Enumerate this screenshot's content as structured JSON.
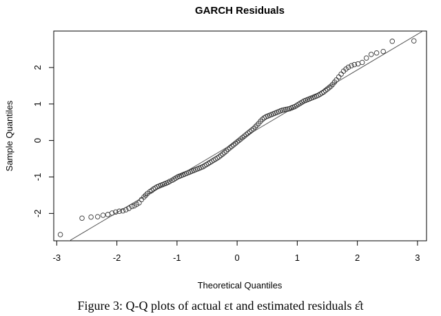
{
  "chart_data": {
    "type": "scatter",
    "title": "GARCH Residuals",
    "xlabel": "Theoretical Quantiles",
    "ylabel": "Sample Quantiles",
    "xlim": [
      -3.05,
      3.15
    ],
    "ylim": [
      -2.75,
      3.0
    ],
    "xticks": [
      -3,
      -2,
      -1,
      0,
      1,
      2,
      3
    ],
    "yticks": [
      -2,
      -1,
      0,
      1,
      2
    ],
    "grid": false,
    "reference_line": {
      "slope": 0.9783,
      "intercept": -0.0217
    },
    "points": [
      [
        -2.94,
        -2.58
      ],
      [
        -2.58,
        -2.13
      ],
      [
        -2.43,
        -2.1
      ],
      [
        -2.32,
        -2.09
      ],
      [
        -2.23,
        -2.05
      ],
      [
        -2.15,
        -2.03
      ],
      [
        -2.08,
        -1.99
      ],
      [
        -2.02,
        -1.96
      ],
      [
        -1.96,
        -1.94
      ],
      [
        -1.9,
        -1.93
      ],
      [
        -1.85,
        -1.9
      ],
      [
        -1.8,
        -1.86
      ],
      [
        -1.75,
        -1.81
      ],
      [
        -1.71,
        -1.79
      ],
      [
        -1.67,
        -1.75
      ],
      [
        -1.63,
        -1.71
      ],
      [
        -1.59,
        -1.62
      ],
      [
        -1.55,
        -1.55
      ],
      [
        -1.52,
        -1.5
      ],
      [
        -1.49,
        -1.45
      ],
      [
        -1.45,
        -1.4
      ],
      [
        -1.42,
        -1.37
      ],
      [
        -1.39,
        -1.33
      ],
      [
        -1.36,
        -1.3
      ],
      [
        -1.33,
        -1.27
      ],
      [
        -1.3,
        -1.25
      ],
      [
        -1.27,
        -1.23
      ],
      [
        -1.24,
        -1.21
      ],
      [
        -1.21,
        -1.19
      ],
      [
        -1.18,
        -1.17
      ],
      [
        -1.15,
        -1.15
      ],
      [
        -1.12,
        -1.12
      ],
      [
        -1.08,
        -1.09
      ],
      [
        -1.05,
        -1.06
      ],
      [
        -1.02,
        -1.03
      ],
      [
        -0.99,
        -1.0
      ],
      [
        -0.96,
        -0.98
      ],
      [
        -0.93,
        -0.96
      ],
      [
        -0.9,
        -0.94
      ],
      [
        -0.87,
        -0.92
      ],
      [
        -0.84,
        -0.9
      ],
      [
        -0.81,
        -0.88
      ],
      [
        -0.78,
        -0.86
      ],
      [
        -0.75,
        -0.84
      ],
      [
        -0.72,
        -0.82
      ],
      [
        -0.69,
        -0.8
      ],
      [
        -0.66,
        -0.78
      ],
      [
        -0.63,
        -0.76
      ],
      [
        -0.6,
        -0.74
      ],
      [
        -0.57,
        -0.72
      ],
      [
        -0.54,
        -0.69
      ],
      [
        -0.51,
        -0.66
      ],
      [
        -0.48,
        -0.63
      ],
      [
        -0.45,
        -0.6
      ],
      [
        -0.42,
        -0.57
      ],
      [
        -0.39,
        -0.54
      ],
      [
        -0.36,
        -0.51
      ],
      [
        -0.33,
        -0.48
      ],
      [
        -0.3,
        -0.45
      ],
      [
        -0.27,
        -0.41
      ],
      [
        -0.24,
        -0.37
      ],
      [
        -0.21,
        -0.33
      ],
      [
        -0.18,
        -0.29
      ],
      [
        -0.15,
        -0.24
      ],
      [
        -0.12,
        -0.2
      ],
      [
        -0.09,
        -0.16
      ],
      [
        -0.06,
        -0.12
      ],
      [
        -0.03,
        -0.08
      ],
      [
        0.0,
        -0.04
      ],
      [
        0.03,
        0.0
      ],
      [
        0.06,
        0.04
      ],
      [
        0.09,
        0.08
      ],
      [
        0.12,
        0.12
      ],
      [
        0.15,
        0.16
      ],
      [
        0.18,
        0.2
      ],
      [
        0.21,
        0.24
      ],
      [
        0.24,
        0.28
      ],
      [
        0.27,
        0.32
      ],
      [
        0.3,
        0.37
      ],
      [
        0.33,
        0.42
      ],
      [
        0.36,
        0.47
      ],
      [
        0.39,
        0.53
      ],
      [
        0.42,
        0.58
      ],
      [
        0.45,
        0.62
      ],
      [
        0.48,
        0.65
      ],
      [
        0.51,
        0.67
      ],
      [
        0.54,
        0.69
      ],
      [
        0.57,
        0.71
      ],
      [
        0.6,
        0.73
      ],
      [
        0.63,
        0.75
      ],
      [
        0.66,
        0.77
      ],
      [
        0.69,
        0.79
      ],
      [
        0.72,
        0.81
      ],
      [
        0.75,
        0.83
      ],
      [
        0.78,
        0.84
      ],
      [
        0.81,
        0.85
      ],
      [
        0.84,
        0.86
      ],
      [
        0.87,
        0.87
      ],
      [
        0.9,
        0.89
      ],
      [
        0.93,
        0.91
      ],
      [
        0.96,
        0.93
      ],
      [
        0.99,
        0.96
      ],
      [
        1.02,
        0.99
      ],
      [
        1.05,
        1.02
      ],
      [
        1.08,
        1.05
      ],
      [
        1.11,
        1.08
      ],
      [
        1.14,
        1.1
      ],
      [
        1.17,
        1.12
      ],
      [
        1.2,
        1.14
      ],
      [
        1.23,
        1.16
      ],
      [
        1.26,
        1.18
      ],
      [
        1.29,
        1.2
      ],
      [
        1.32,
        1.22
      ],
      [
        1.35,
        1.24
      ],
      [
        1.38,
        1.27
      ],
      [
        1.41,
        1.3
      ],
      [
        1.44,
        1.33
      ],
      [
        1.47,
        1.37
      ],
      [
        1.5,
        1.41
      ],
      [
        1.53,
        1.45
      ],
      [
        1.56,
        1.49
      ],
      [
        1.59,
        1.54
      ],
      [
        1.62,
        1.6
      ],
      [
        1.65,
        1.66
      ],
      [
        1.69,
        1.74
      ],
      [
        1.73,
        1.82
      ],
      [
        1.77,
        1.9
      ],
      [
        1.81,
        1.96
      ],
      [
        1.85,
        2.01
      ],
      [
        1.9,
        2.05
      ],
      [
        1.95,
        2.08
      ],
      [
        2.01,
        2.1
      ],
      [
        2.08,
        2.14
      ],
      [
        2.15,
        2.26
      ],
      [
        2.23,
        2.36
      ],
      [
        2.32,
        2.4
      ],
      [
        2.43,
        2.44
      ],
      [
        2.58,
        2.72
      ],
      [
        2.94,
        2.73
      ]
    ]
  },
  "caption": "Figure 3: Q-Q plots of actual εt and estimated residuals ε̂t"
}
